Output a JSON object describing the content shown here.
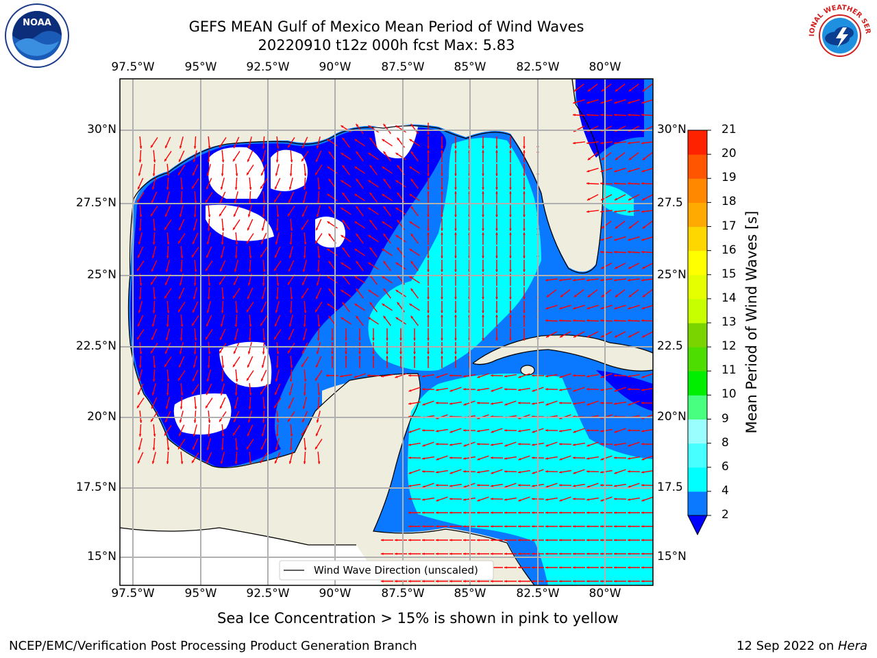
{
  "header": {
    "title_line1": "GEFS MEAN Gulf of Mexico Mean Period of Wind Waves",
    "title_line2": "20220910 t12z 000h fcst   Max: 5.83"
  },
  "logos": {
    "left": "noaa-logo",
    "left_text": "NOAA",
    "right": "nws-logo",
    "right_text": "NATIONAL WEATHER SERVICE"
  },
  "map": {
    "lon_labels": [
      "97.5°W",
      "95°W",
      "92.5°W",
      "90°W",
      "87.5°W",
      "85°W",
      "82.5°W",
      "80°W"
    ],
    "lat_labels_left": [
      "30°N",
      "27.5°N",
      "25°N",
      "22.5°N",
      "20°N",
      "17.5°N",
      "15°N"
    ],
    "lat_labels_right": [
      "30°N",
      "27.5",
      "25°N",
      "22.5",
      "20°N",
      "17.5",
      "15°N"
    ],
    "legend": "Wind Wave Direction (unscaled)",
    "colors": {
      "land": "#efedde",
      "deep_blue": "#0000ff",
      "mid_blue": "#0a78ff",
      "cyan": "#00ffff",
      "arrow": "#ff0000",
      "grid": "#b0b0b0"
    }
  },
  "colorbar": {
    "label": "Mean Period of Wind Waves [s]",
    "ticks": [
      "2",
      "4",
      "6",
      "8",
      "9",
      "10",
      "11",
      "12",
      "13",
      "14",
      "15",
      "16",
      "17",
      "18",
      "19",
      "20",
      "21"
    ],
    "colors": [
      "#0a78ff",
      "#00ffff",
      "#48ffff",
      "#9bfefe",
      "#48ff80",
      "#00ee00",
      "#4ddd00",
      "#7ad400",
      "#c8ff00",
      "#e6ff00",
      "#ffff00",
      "#ffd700",
      "#ffaa00",
      "#ff8800",
      "#ff5500",
      "#ff2200"
    ],
    "under_color": "#0000ff"
  },
  "subtitle": "Sea Ice Concentration > 15% is shown in pink to yellow",
  "footer": {
    "left": "NCEP/EMC/Verification Post Processing Product Generation Branch",
    "right_prefix": "12 Sep 2022 on ",
    "right_host": "Hera"
  }
}
